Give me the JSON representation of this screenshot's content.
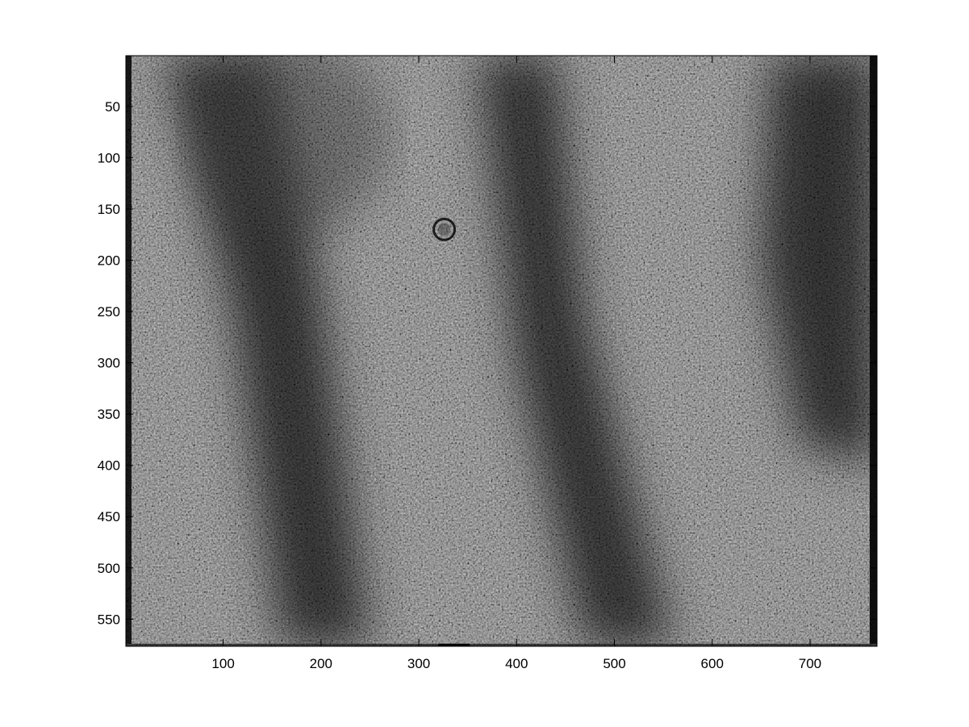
{
  "chart_data": {
    "type": "heatmap",
    "colormap": "gray",
    "image_size": {
      "columns": 768,
      "rows": 576
    },
    "xlim": [
      0.5,
      768.5
    ],
    "ylim": [
      0.5,
      576.5
    ],
    "y_direction": "reversed",
    "grid": false,
    "title": "",
    "xlabel": "",
    "ylabel": "",
    "xticks": [
      100,
      200,
      300,
      400,
      500,
      600,
      700
    ],
    "xtick_labels": [
      "100",
      "200",
      "300",
      "400",
      "500",
      "600",
      "700"
    ],
    "yticks": [
      50,
      100,
      150,
      200,
      250,
      300,
      350,
      400,
      450,
      500,
      550
    ],
    "ytick_labels": [
      "50",
      "100",
      "150",
      "200",
      "250",
      "300",
      "350",
      "400",
      "450",
      "500",
      "550"
    ]
  }
}
